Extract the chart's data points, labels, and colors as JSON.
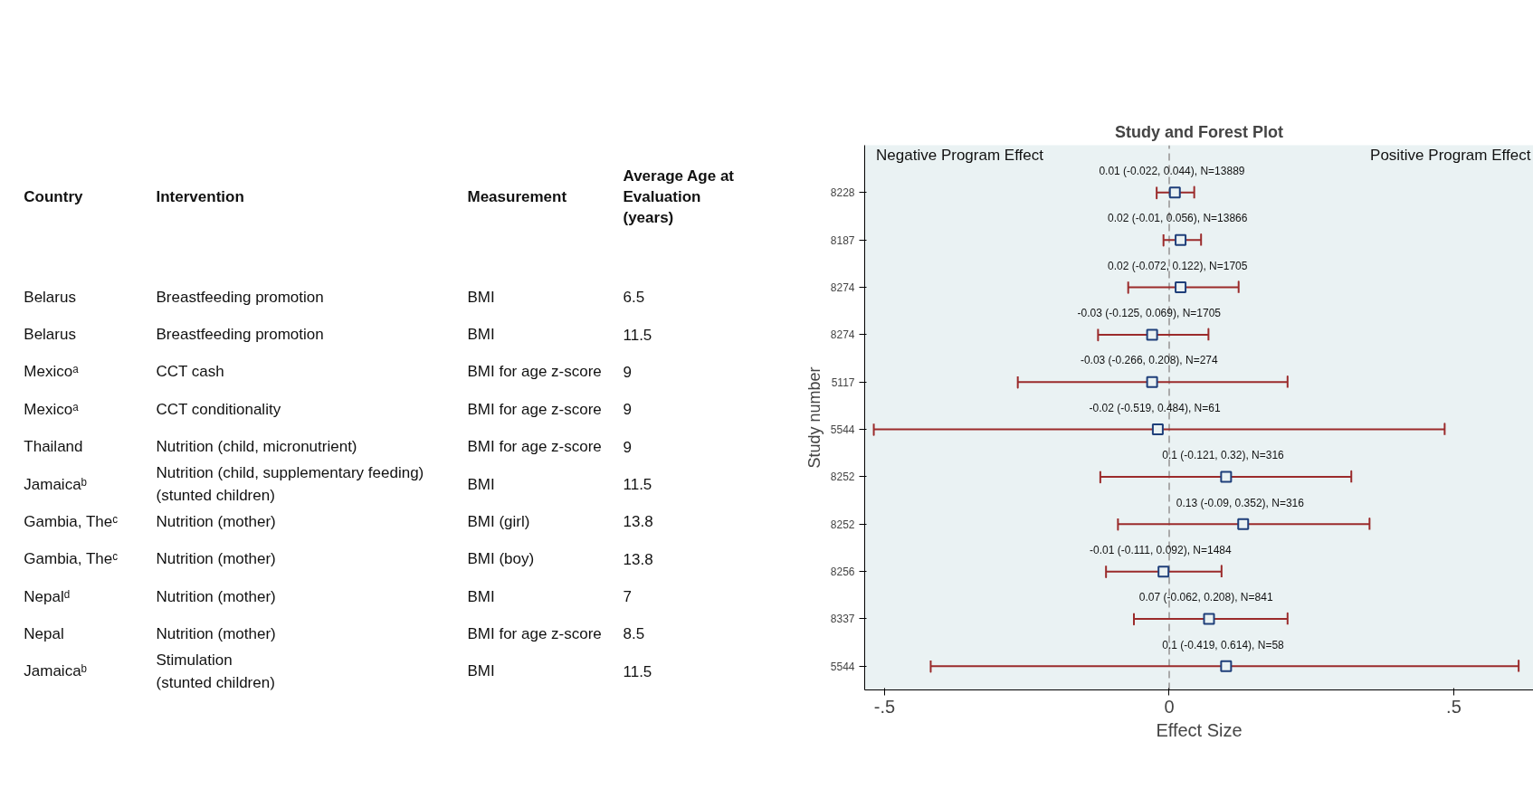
{
  "chart_data": [
    {
      "type": "other",
      "annotations": [
        "Country",
        "Intervention",
        "Measurement",
        "Average Age at\nEvaluation\n(years)",
        "Belarus",
        "Breastfeeding promotion",
        "BMI",
        "6.5",
        "Belarus",
        "Breastfeeding promotion",
        "BMI",
        "11.5",
        "Mexicoᵃ",
        "CCT cash",
        "BMI for age z-score",
        "9",
        "Mexicoᵃ",
        "CCT conditionality",
        "BMI for age z-score",
        "9",
        "Thailand",
        "Nutrition (child, micronutrient)",
        "BMI for age z-score",
        "9",
        "Jamaicaᵇ",
        "Nutrition (child, supplementary feeding)\n(stunted children)",
        "BMI",
        "11.5",
        "Gambia, Theᶜ",
        "Nutrition (mother)",
        "BMI (girl)",
        "13.8",
        "Gambia, Theᶜ",
        "Nutrition (mother)",
        "BMI (boy)",
        "13.8",
        "Nepalᵈ",
        "Nutrition (mother)",
        "BMI",
        "7",
        "Nepal",
        "Nutrition (mother)",
        "BMI for age z-score",
        "8.5",
        "Jamaicaᵇ",
        "Stimulation\n(stunted children)",
        "BMI",
        "11.5"
      ]
    },
    {
      "type": "scatter",
      "orientation": "horizontal",
      "title": "Study and Forest Plot",
      "xlabel": "Effect Size",
      "ylabel": "Study number",
      "categories": [
        "8228",
        "8187",
        "8274",
        "8274",
        "5117",
        "5544",
        "8252",
        "8252",
        "8256",
        "8337",
        "5544"
      ],
      "values": [
        0.01,
        0.02,
        0.02,
        -0.03,
        -0.03,
        -0.02,
        0.1,
        0.13,
        -0.01,
        0.07,
        0.1
      ],
      "errors": [
        [
          -0.022,
          0.044
        ],
        [
          -0.01,
          0.056
        ],
        [
          -0.072,
          0.122
        ],
        [
          -0.125,
          0.069
        ],
        [
          -0.266,
          0.208
        ],
        [
          -0.519,
          0.484
        ],
        [
          -0.121,
          0.32
        ],
        [
          -0.09,
          0.352
        ],
        [
          -0.111,
          0.092
        ],
        [
          -0.062,
          0.208
        ],
        [
          -0.419,
          0.614
        ]
      ],
      "value_labels": [
        "0.01  (-0.022, 0.044),  N=13889",
        "0.02  (-0.01, 0.056),  N=13866",
        "0.02  (-0.072, 0.122),  N=1705",
        "-0.03  (-0.125, 0.069),  N=1705",
        "-0.03  (-0.266, 0.208),  N=274",
        "-0.02  (-0.519, 0.484),  N=61",
        "0.1  (-0.121, 0.32),  N=316",
        "0.13  (-0.09, 0.352),  N=316",
        "-0.01  (-0.111, 0.092),  N=1484",
        "0.07  (-0.062, 0.208),  N=841",
        "0.1  (-0.419, 0.614),  N=58"
      ],
      "color": "#1f3f7a",
      "marker": "square",
      "xlim": [
        -0.535,
        0.64
      ],
      "xticks": [
        {
          "value": -0.5,
          "label": "-.5"
        },
        0,
        {
          "value": 0.5,
          "label": ".5"
        }
      ],
      "ref_lines": [
        {
          "axis": "x",
          "value": 0,
          "color": "#aaaaaa",
          "line_style": "dashed"
        }
      ],
      "annotations": [
        "Negative Program Effect",
        "Positive Program Effect"
      ],
      "grid": false
    }
  ]
}
